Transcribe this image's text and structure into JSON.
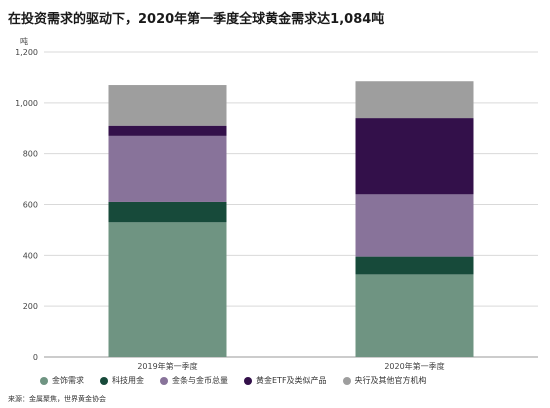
{
  "chart_data": {
    "type": "bar",
    "stacked": true,
    "title": "在投资需求的驱动下，2020年第一季度全球黄金需求达1,084吨",
    "ylabel": "吨",
    "ylim": [
      0,
      1200
    ],
    "yticks": [
      0,
      200,
      400,
      600,
      800,
      1000,
      1200
    ],
    "ytick_labels": [
      "0",
      "200",
      "400",
      "600",
      "800",
      "1,000",
      "1,200"
    ],
    "categories": [
      "2019年第一季度",
      "2020年第一季度"
    ],
    "series": [
      {
        "name": "金饰需求",
        "color": "#6f9482",
        "values": [
          530,
          325
        ]
      },
      {
        "name": "科技用金",
        "color": "#174a3a",
        "values": [
          80,
          70
        ]
      },
      {
        "name": "金条与金币总量",
        "color": "#88739a",
        "values": [
          260,
          245
        ]
      },
      {
        "name": "黄金ETF及类似产品",
        "color": "#33104a",
        "values": [
          40,
          300
        ]
      },
      {
        "name": "央行及其他官方机构",
        "color": "#9e9e9e",
        "values": [
          160,
          145
        ]
      }
    ],
    "grid": true,
    "legend_position": "bottom"
  },
  "source": "来源：金属聚焦，世界黄金协会"
}
